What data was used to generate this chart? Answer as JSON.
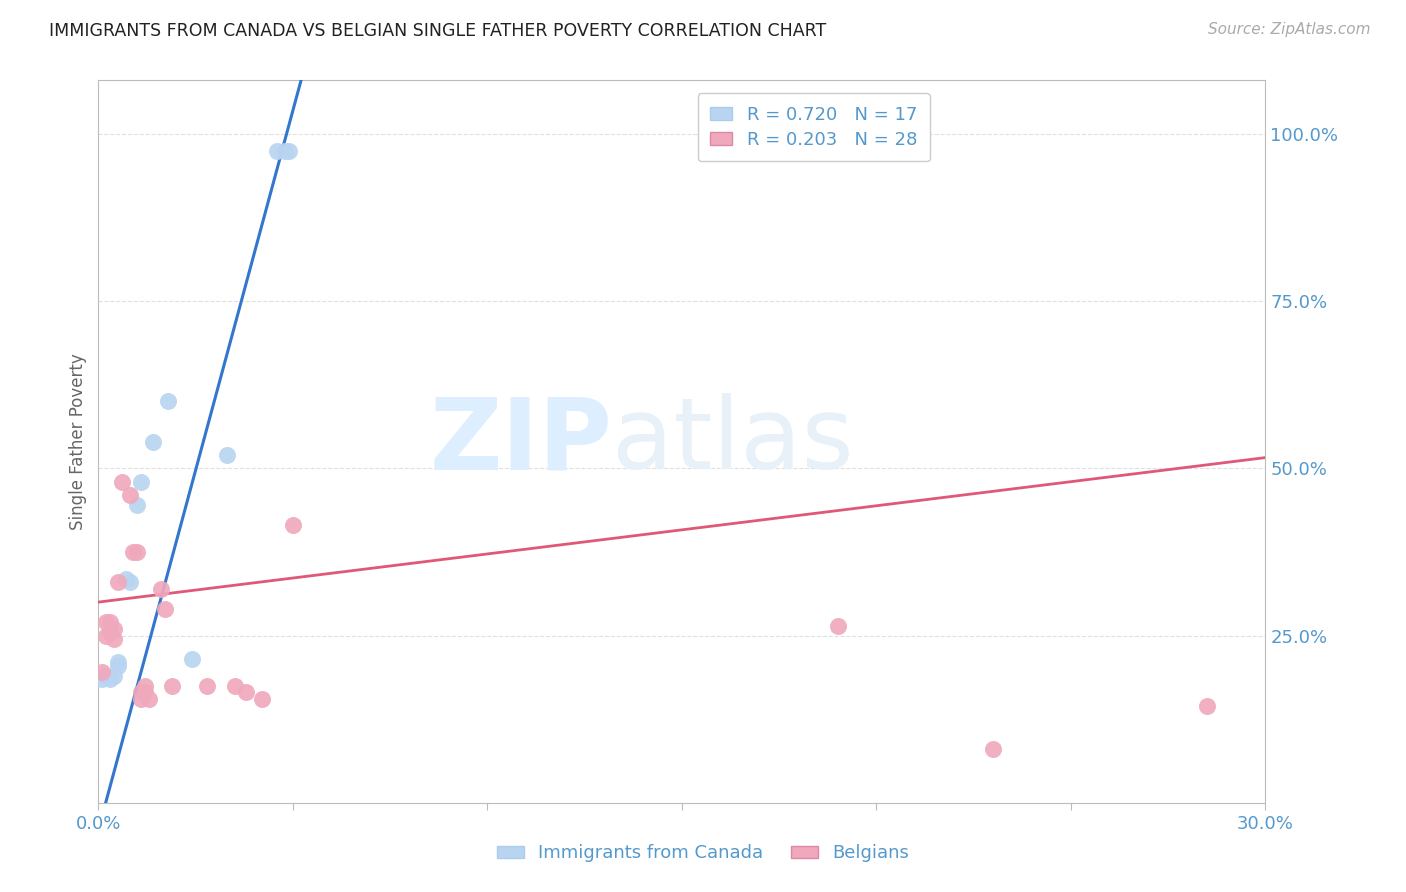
{
  "title": "IMMIGRANTS FROM CANADA VS BELGIAN SINGLE FATHER POVERTY CORRELATION CHART",
  "source": "Source: ZipAtlas.com",
  "ylabel": "Single Father Poverty",
  "ytick_labels": [
    "100.0%",
    "75.0%",
    "50.0%",
    "25.0%"
  ],
  "ytick_values": [
    1.0,
    0.75,
    0.5,
    0.25
  ],
  "xlim": [
    0.0,
    0.3
  ],
  "ylim": [
    0.0,
    1.08
  ],
  "legend_entries": [
    {
      "label": "R = 0.720   N = 17",
      "color": "#b8d4f0"
    },
    {
      "label": "R = 0.203   N = 28",
      "color": "#f0a8bc"
    }
  ],
  "canada_points": [
    [
      0.001,
      0.185
    ],
    [
      0.002,
      0.19
    ],
    [
      0.003,
      0.185
    ],
    [
      0.004,
      0.19
    ],
    [
      0.005,
      0.205
    ],
    [
      0.005,
      0.21
    ],
    [
      0.007,
      0.335
    ],
    [
      0.008,
      0.33
    ],
    [
      0.01,
      0.445
    ],
    [
      0.011,
      0.48
    ],
    [
      0.014,
      0.54
    ],
    [
      0.018,
      0.6
    ],
    [
      0.046,
      0.975
    ],
    [
      0.048,
      0.975
    ],
    [
      0.049,
      0.975
    ],
    [
      0.024,
      0.215
    ],
    [
      0.033,
      0.52
    ]
  ],
  "belgian_points": [
    [
      0.001,
      0.195
    ],
    [
      0.002,
      0.27
    ],
    [
      0.002,
      0.25
    ],
    [
      0.003,
      0.27
    ],
    [
      0.003,
      0.255
    ],
    [
      0.004,
      0.26
    ],
    [
      0.004,
      0.245
    ],
    [
      0.005,
      0.33
    ],
    [
      0.006,
      0.48
    ],
    [
      0.008,
      0.46
    ],
    [
      0.009,
      0.375
    ],
    [
      0.01,
      0.375
    ],
    [
      0.011,
      0.155
    ],
    [
      0.011,
      0.165
    ],
    [
      0.012,
      0.175
    ],
    [
      0.012,
      0.165
    ],
    [
      0.013,
      0.155
    ],
    [
      0.016,
      0.32
    ],
    [
      0.017,
      0.29
    ],
    [
      0.019,
      0.175
    ],
    [
      0.028,
      0.175
    ],
    [
      0.035,
      0.175
    ],
    [
      0.038,
      0.165
    ],
    [
      0.042,
      0.155
    ],
    [
      0.05,
      0.415
    ],
    [
      0.19,
      0.265
    ],
    [
      0.23,
      0.08
    ],
    [
      0.285,
      0.145
    ]
  ],
  "canada_color": "#b8d4f0",
  "belgian_color": "#f0a8bc",
  "canada_line_color": "#3377cc",
  "belgian_line_color": "#e05878",
  "canada_line_intercept": -0.04,
  "canada_line_slope": 21.5,
  "belgian_line_intercept": 0.3,
  "belgian_line_slope": 0.72,
  "background_color": "#ffffff",
  "grid_color": "#e0e0e0",
  "tick_label_color": "#5599cc",
  "title_color": "#222222",
  "watermark_zip": "ZIP",
  "watermark_atlas": "atlas",
  "watermark_color": "#ddeeff"
}
